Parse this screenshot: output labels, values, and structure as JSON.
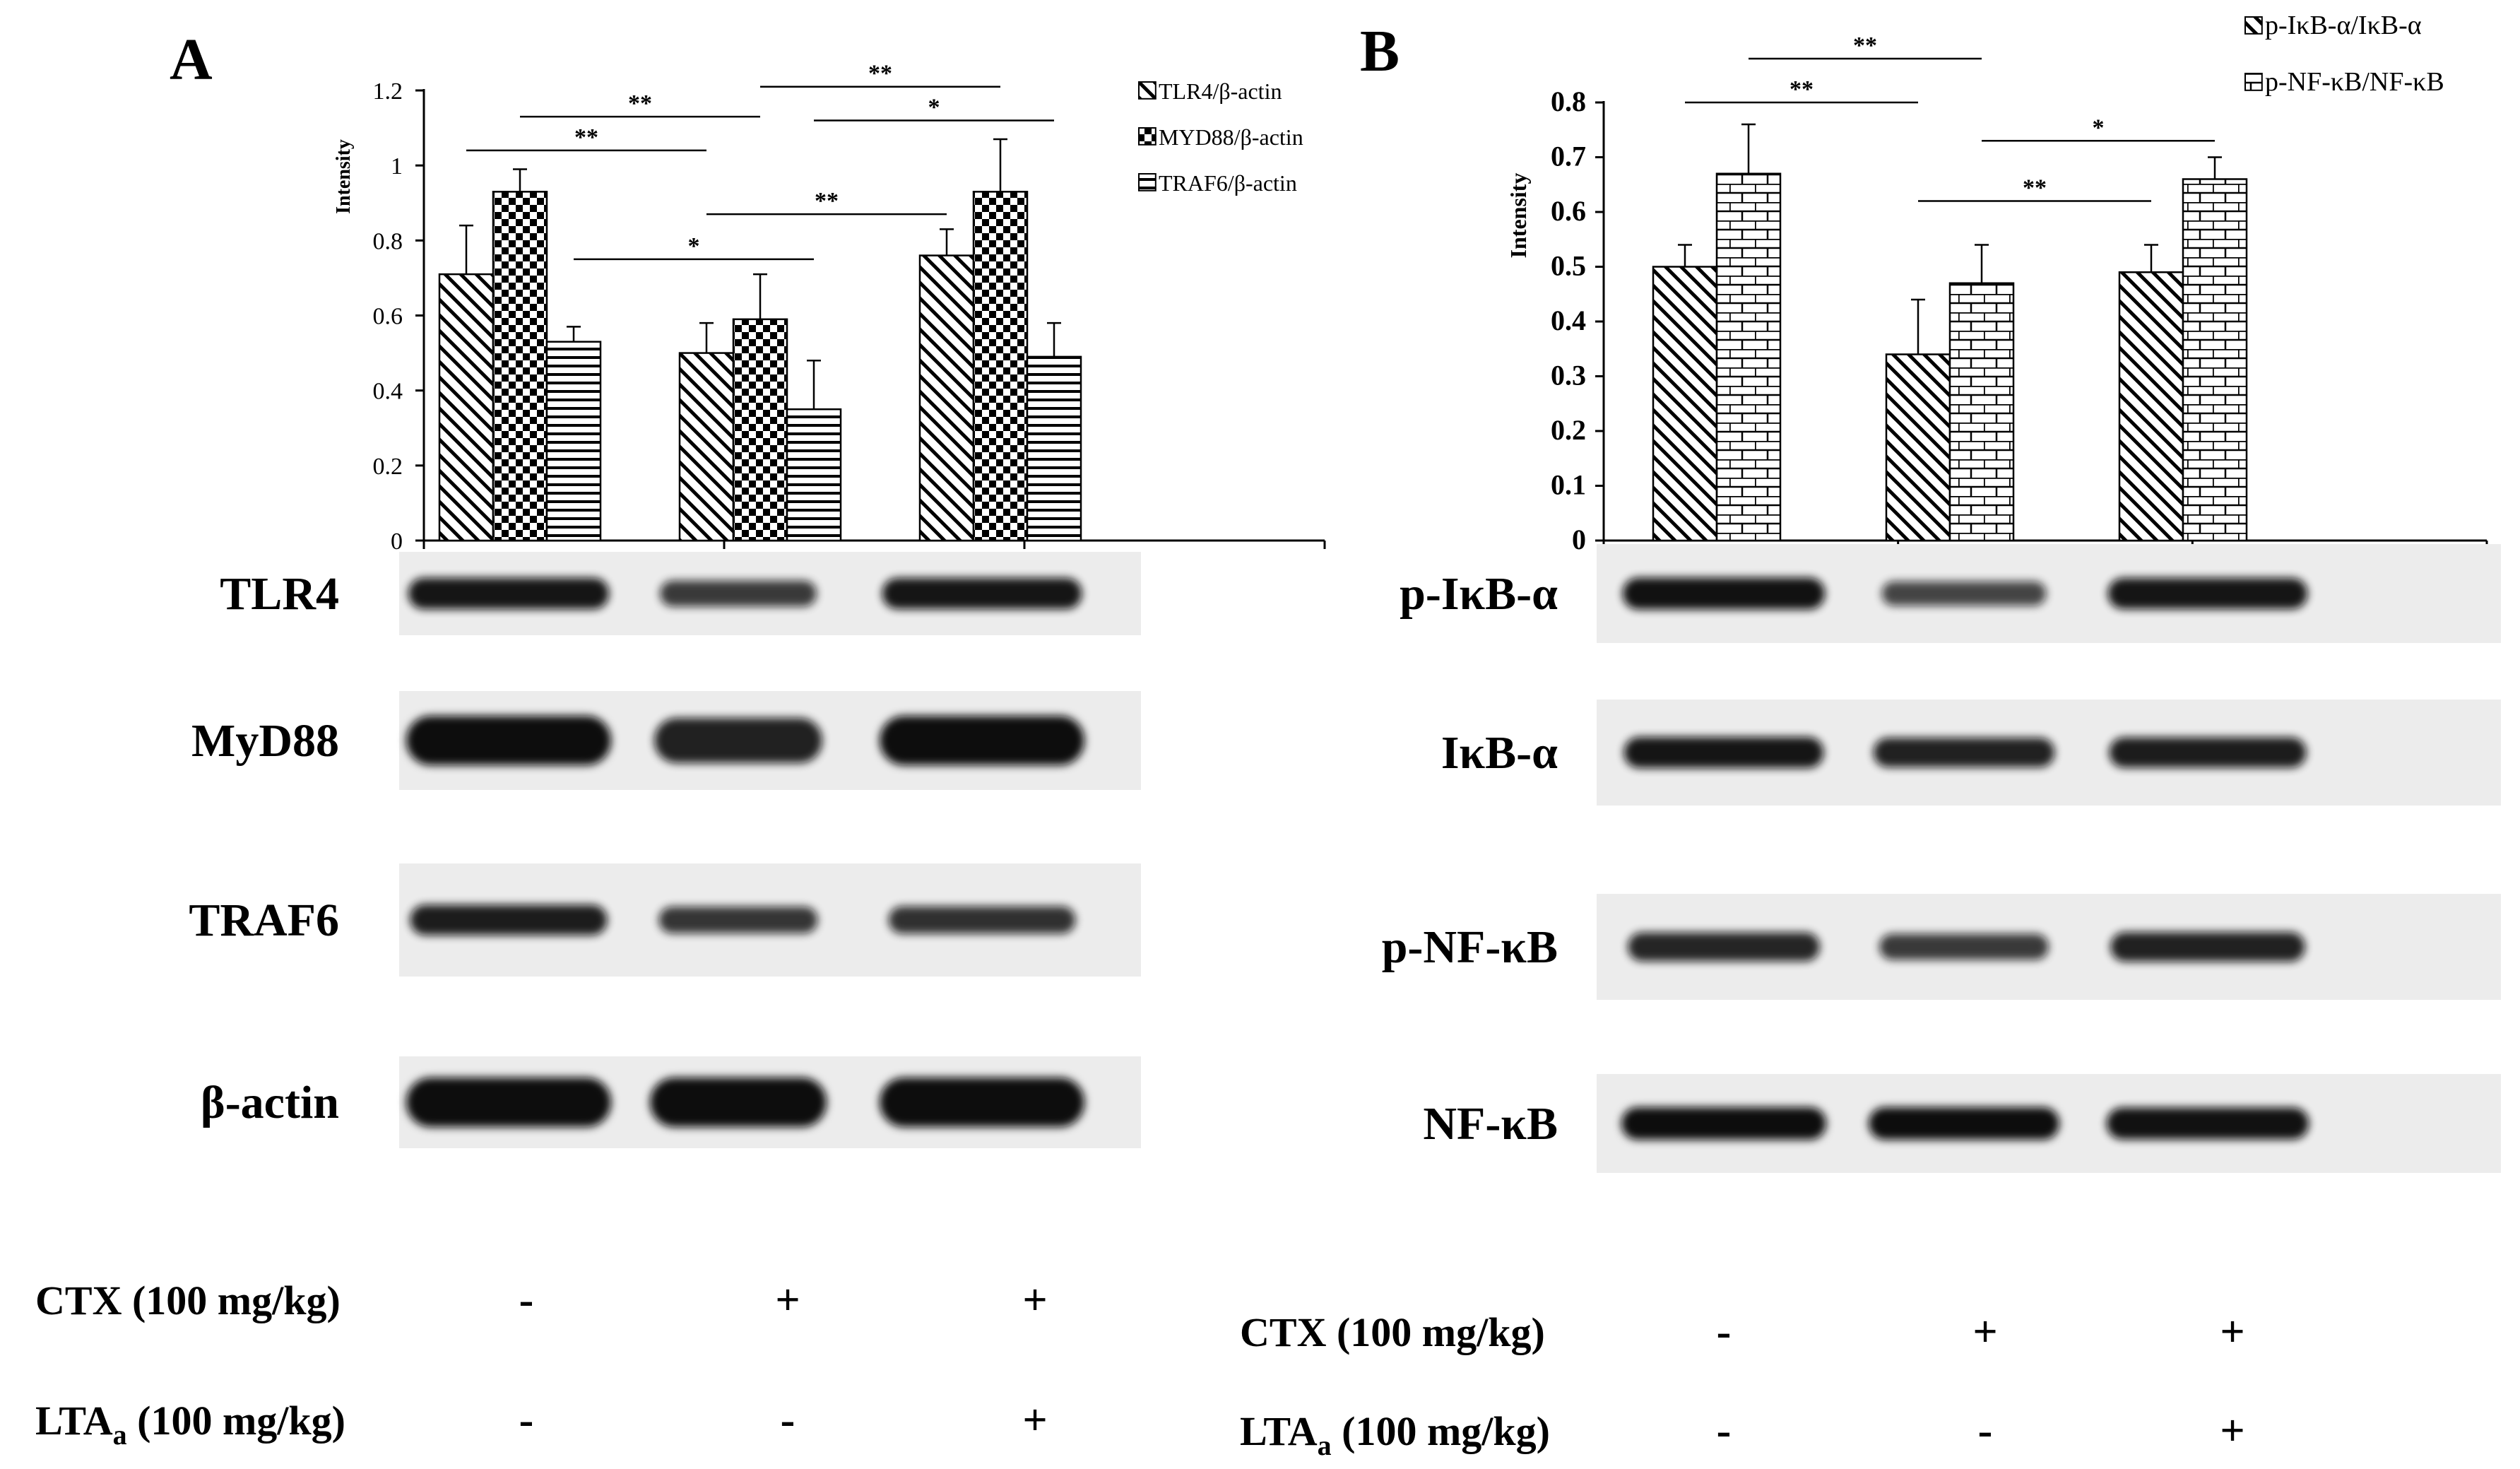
{
  "colors": {
    "ink": "#000000",
    "background": "#ffffff",
    "blot_bg": "#ececec",
    "band": "#0b0b0f"
  },
  "panels": {
    "A": {
      "letter": "A"
    },
    "B": {
      "letter": "B"
    }
  },
  "chart_data": [
    {
      "type": "bar",
      "panel": "A",
      "ylabel": "Intensity",
      "ylim": [
        0,
        1.2
      ],
      "yticks": [
        "0",
        "0.2",
        "0.4",
        "0.6",
        "0.8",
        "1",
        "1.2"
      ],
      "categories": [
        "",
        "",
        ""
      ],
      "series": [
        {
          "name": "TLR4/β-actin",
          "pattern": "diagonal",
          "values": [
            0.71,
            0.5,
            0.76
          ],
          "errors": [
            0.13,
            0.08,
            0.07
          ]
        },
        {
          "name": "MYD88/β-actin",
          "pattern": "checker",
          "values": [
            0.93,
            0.59,
            0.93
          ],
          "errors": [
            0.06,
            0.12,
            0.14
          ]
        },
        {
          "name": "TRAF6/β-actin",
          "pattern": "horizontal",
          "values": [
            0.53,
            0.35,
            0.49
          ],
          "errors": [
            0.04,
            0.13,
            0.09
          ]
        }
      ],
      "legend": "top-right",
      "annotations": [
        {
          "label": "**",
          "from": "g1-s0",
          "to": "g2-s0",
          "y": 1.04
        },
        {
          "label": "**",
          "from": "g1-s1",
          "to": "g2-s1",
          "y": 1.13
        },
        {
          "label": "*",
          "from": "g1-s2",
          "to": "g2-s2",
          "y": 0.75
        },
        {
          "label": "**",
          "from": "g2-s0",
          "to": "g3-s0",
          "y": 0.87
        },
        {
          "label": "**",
          "from": "g2-s1",
          "to": "g3-s1",
          "y": 1.21
        },
        {
          "label": "*",
          "from": "g2-s2",
          "to": "g3-s2",
          "y": 1.12
        }
      ]
    },
    {
      "type": "bar",
      "panel": "B",
      "ylabel": "Intensity",
      "ylim": [
        0,
        0.8
      ],
      "yticks": [
        "0",
        "0.1",
        "0.2",
        "0.3",
        "0.4",
        "0.5",
        "0.6",
        "0.7",
        "0.8"
      ],
      "categories": [
        "",
        "",
        ""
      ],
      "series": [
        {
          "name": "p-IκB-α/IκB-α",
          "pattern": "diagonal",
          "values": [
            0.5,
            0.34,
            0.49
          ],
          "errors": [
            0.04,
            0.1,
            0.05
          ]
        },
        {
          "name": "p-NF-κB/NF-κB",
          "pattern": "brick",
          "values": [
            0.67,
            0.47,
            0.66
          ],
          "errors": [
            0.09,
            0.07,
            0.04
          ]
        }
      ],
      "legend": "top-right",
      "annotations": [
        {
          "label": "**",
          "from": "g1-s0",
          "to": "g2-s0",
          "y": 0.8
        },
        {
          "label": "**",
          "from": "g1-s1",
          "to": "g2-s1",
          "y": 0.88
        },
        {
          "label": "**",
          "from": "g2-s0",
          "to": "g3-s0",
          "y": 0.62
        },
        {
          "label": "*",
          "from": "g2-s1",
          "to": "g3-s1",
          "y": 0.73
        }
      ]
    }
  ],
  "blots": {
    "A": [
      {
        "label": "TLR4",
        "strength": [
          0.92,
          0.55,
          0.9
        ],
        "kind": "normal"
      },
      {
        "label": "MyD88",
        "strength": [
          1.0,
          0.8,
          1.0
        ],
        "kind": "thick"
      },
      {
        "label": "TRAF6",
        "strength": [
          0.85,
          0.6,
          0.65
        ],
        "kind": "normal"
      },
      {
        "label": "β-actin",
        "strength": [
          1.0,
          1.0,
          1.0
        ],
        "kind": "thick"
      }
    ],
    "B": [
      {
        "label": "p-IκB-α",
        "strength": [
          0.95,
          0.45,
          0.9
        ],
        "kind": "normal"
      },
      {
        "label": "IκB-α",
        "strength": [
          0.9,
          0.8,
          0.85
        ],
        "kind": "normal"
      },
      {
        "label": "p-NF-κB",
        "strength": [
          0.75,
          0.55,
          0.8
        ],
        "kind": "normal"
      },
      {
        "label": "NF-κB",
        "strength": [
          1.0,
          1.0,
          0.95
        ],
        "kind": "normal"
      }
    ]
  },
  "conditions": {
    "ctx_label": "CTX (100 mg/kg)",
    "lta_label_main": "LTA",
    "lta_label_sub": "a",
    "lta_label_rest": " (100 mg/kg)",
    "ctx_signs": [
      "-",
      "+",
      "+"
    ],
    "lta_signs": [
      "-",
      "-",
      "+"
    ]
  }
}
